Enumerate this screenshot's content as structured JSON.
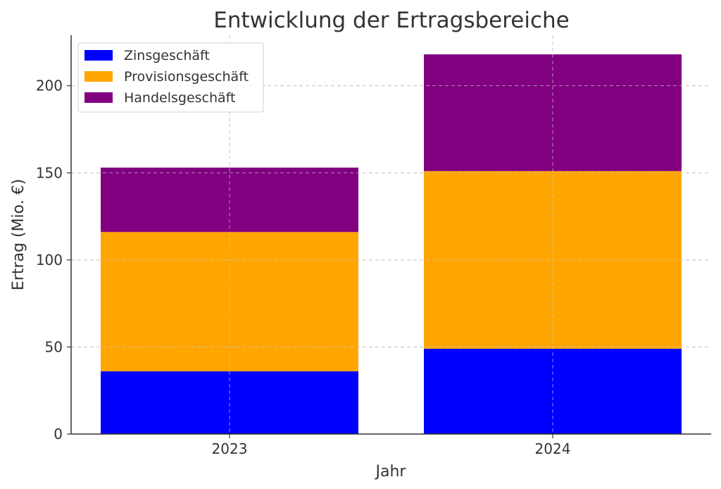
{
  "chart_data": {
    "type": "bar",
    "stacked": true,
    "title": "Entwicklung der Ertragsbereiche",
    "xlabel": "Jahr",
    "ylabel": "Ertrag (Mio. €)",
    "categories": [
      "2023",
      "2024"
    ],
    "series": [
      {
        "name": "Zinsgeschäft",
        "values": [
          36,
          49
        ],
        "color": "#0000ff"
      },
      {
        "name": "Provisionsgeschäft",
        "values": [
          80,
          102
        ],
        "color": "#ffa500"
      },
      {
        "name": "Handelsgeschäft",
        "values": [
          37,
          67
        ],
        "color": "#800080"
      }
    ],
    "ylim": [
      0,
      229
    ],
    "yticks": [
      0,
      50,
      100,
      150,
      200
    ],
    "grid": true,
    "legend_position": "top-left"
  }
}
